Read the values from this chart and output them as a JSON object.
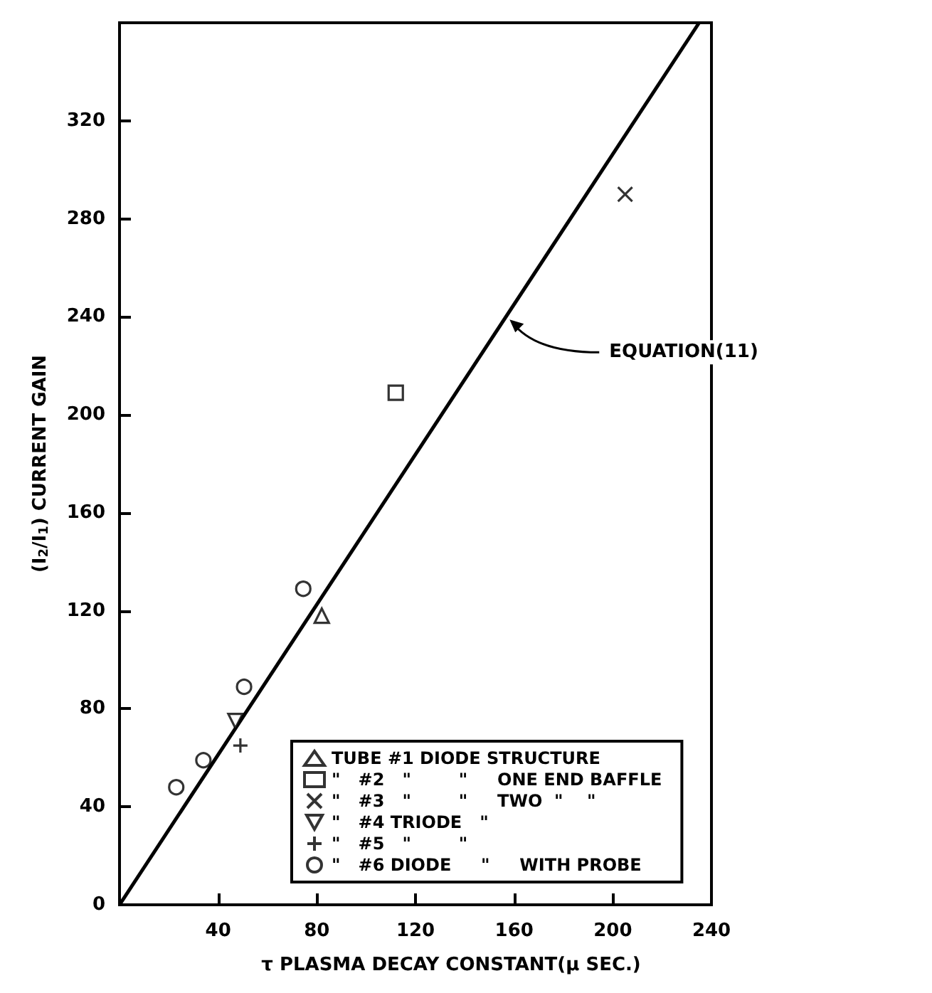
{
  "chart_data": {
    "type": "scatter",
    "xlabel": "τ PLASMA DECAY CONSTANT(μ SEC.)",
    "ylabel": "(I$_{2}$/I$_{1}$) CURRENT GAIN",
    "xlim": [
      0,
      240
    ],
    "ylim": [
      0,
      360
    ],
    "xticks": [
      40,
      80,
      120,
      160,
      200,
      240
    ],
    "yticks": [
      0,
      40,
      80,
      120,
      160,
      200,
      240,
      280,
      320
    ],
    "grid": false,
    "legend": "bottom right",
    "color": "#000000",
    "series": [
      {
        "name": "TUBE #1 DIODE STRUCTURE",
        "marker": "triangle",
        "x": [
          82
        ],
        "values": [
          118
        ]
      },
      {
        "name": "\"   #2   \"        \"     ONE END BAFFLE",
        "marker": "square",
        "x": [
          112
        ],
        "values": [
          209
        ]
      },
      {
        "name": "\"   #3   \"        \"     TWO  \"    \"",
        "marker": "cross",
        "x": [
          205
        ],
        "values": [
          290
        ]
      },
      {
        "name": "\"   #4 TRIODE   \"",
        "marker": "triangle-down",
        "x": [
          47
        ],
        "values": [
          75
        ]
      },
      {
        "name": "\"   #5   \"        \"",
        "marker": "plus",
        "x": [
          49
        ],
        "values": [
          65
        ]
      },
      {
        "name": "\"   #6 DIODE     \"     WITH PROBE",
        "marker": "circle",
        "x": [
          23,
          34,
          50.5,
          74.5
        ],
        "values": [
          48,
          59,
          89,
          129
        ]
      },
      {
        "type": "line",
        "x": [
          0,
          235
        ],
        "values": [
          0,
          360
        ]
      }
    ],
    "annotations": [
      {
        "text": "EQUATION(11)",
        "x": 157,
        "y": 240
      }
    ]
  }
}
